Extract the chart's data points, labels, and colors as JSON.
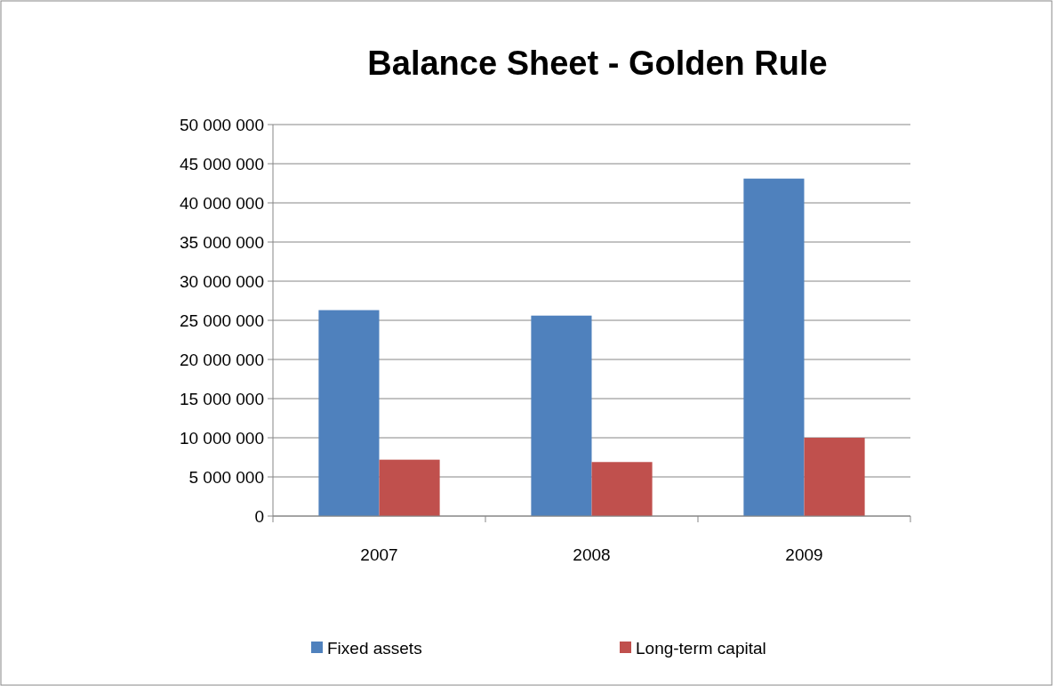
{
  "chart_data": {
    "type": "bar",
    "title": "Balance Sheet - Golden Rule",
    "categories": [
      "2007",
      "2008",
      "2009"
    ],
    "series": [
      {
        "name": "Fixed assets",
        "color": "#4f81bd",
        "values": [
          26300000,
          25600000,
          43100000
        ]
      },
      {
        "name": "Long-term capital",
        "color": "#c0504d",
        "values": [
          7200000,
          6900000,
          10000000
        ]
      }
    ],
    "ylim": [
      0,
      50000000
    ],
    "yticks": [
      {
        "value": 0,
        "label": "0"
      },
      {
        "value": 5000000,
        "label": "5 000 000"
      },
      {
        "value": 10000000,
        "label": "10 000 000"
      },
      {
        "value": 15000000,
        "label": "15 000 000"
      },
      {
        "value": 20000000,
        "label": "20 000 000"
      },
      {
        "value": 25000000,
        "label": "25 000 000"
      },
      {
        "value": 30000000,
        "label": "30 000 000"
      },
      {
        "value": 35000000,
        "label": "35 000 000"
      },
      {
        "value": 40000000,
        "label": "40 000 000"
      },
      {
        "value": 45000000,
        "label": "45 000 000"
      },
      {
        "value": 50000000,
        "label": "50 000 000"
      }
    ],
    "grid": "y",
    "legend": "bottom"
  }
}
